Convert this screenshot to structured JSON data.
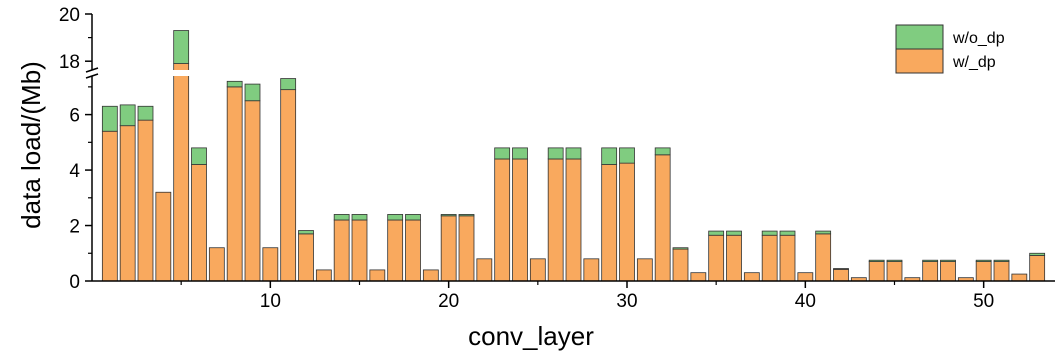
{
  "chart_data": {
    "type": "bar",
    "stacked": true,
    "xlabel": "conv_layer",
    "ylabel": "data load/(Mb)",
    "xlim": [
      0,
      54
    ],
    "ylim": [
      0,
      20
    ],
    "y_axis_break": {
      "from": 7.5,
      "to": 17.5
    },
    "x_ticks": [
      10,
      20,
      30,
      40,
      50
    ],
    "y_ticks": [
      0,
      2,
      4,
      6,
      18,
      20
    ],
    "legend_position": "top-right",
    "colors": {
      "w/_dp": "#f9a95e",
      "w/o_dp": "#80cc80",
      "edge": "#333333"
    },
    "categories": [
      1,
      2,
      3,
      4,
      5,
      6,
      7,
      8,
      9,
      10,
      11,
      12,
      13,
      14,
      15,
      16,
      17,
      18,
      19,
      20,
      21,
      22,
      23,
      24,
      25,
      26,
      27,
      28,
      29,
      30,
      31,
      32,
      33,
      34,
      35,
      36,
      37,
      38,
      39,
      40,
      41,
      42,
      43,
      44,
      45,
      46,
      47,
      48,
      49,
      50,
      51,
      52,
      53
    ],
    "series": [
      {
        "name": "w/_dp",
        "values": [
          5.4,
          5.6,
          5.8,
          3.2,
          17.9,
          4.2,
          1.2,
          7.0,
          6.5,
          1.2,
          6.9,
          1.7,
          0.4,
          2.2,
          2.2,
          0.4,
          2.2,
          2.2,
          0.4,
          2.35,
          2.35,
          0.8,
          4.4,
          4.4,
          0.8,
          4.4,
          4.4,
          0.8,
          4.2,
          4.25,
          0.8,
          4.55,
          1.15,
          0.3,
          1.65,
          1.65,
          0.3,
          1.65,
          1.65,
          0.3,
          1.7,
          0.42,
          0.12,
          0.7,
          0.7,
          0.12,
          0.7,
          0.7,
          0.12,
          0.7,
          0.7,
          0.25,
          0.92
        ]
      },
      {
        "name": "w/o_dp",
        "values": [
          0.9,
          0.75,
          0.5,
          0,
          1.4,
          0.6,
          0,
          0.2,
          0.6,
          0,
          0.4,
          0.12,
          0,
          0.2,
          0.2,
          0,
          0.2,
          0.2,
          0,
          0.05,
          0.05,
          0,
          0.4,
          0.4,
          0,
          0.4,
          0.4,
          0,
          0.6,
          0.55,
          0,
          0.25,
          0.05,
          0,
          0.15,
          0.15,
          0,
          0.15,
          0.15,
          0,
          0.1,
          0.03,
          0,
          0.05,
          0.05,
          0,
          0.05,
          0.05,
          0,
          0.05,
          0.05,
          0,
          0.08
        ]
      }
    ]
  }
}
